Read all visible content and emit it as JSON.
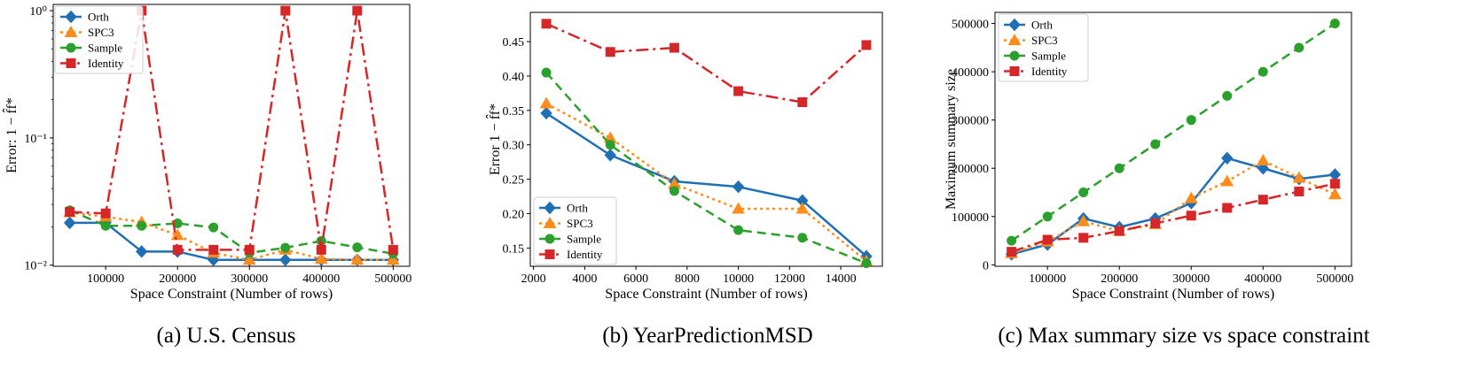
{
  "styles": {
    "Orth": {
      "color": "#1f6fb4",
      "dash": "",
      "marker": "diamond"
    },
    "SPC3": {
      "color": "#ff8c1a",
      "dash": "3 4",
      "marker": "triangle"
    },
    "Sample": {
      "color": "#2ca02c",
      "dash": "10 6",
      "marker": "circle"
    },
    "Identity": {
      "color": "#d62728",
      "dash": "14 5 3 5",
      "marker": "square"
    }
  },
  "chart_data": [
    {
      "type": "line",
      "caption": "(a) U.S. Census",
      "xlabel": "Space Constraint (Number of rows)",
      "ylabel": "Error: 1 − f̂f*",
      "yscale": "log",
      "xlim": [
        27000,
        523000
      ],
      "ylim": [
        0.0098,
        1.12
      ],
      "xticks": [
        100000,
        200000,
        300000,
        400000,
        500000
      ],
      "xtick_labels": [
        "100000",
        "200000",
        "300000",
        "400000",
        "500000"
      ],
      "yticks": [
        0.01,
        0.1,
        1
      ],
      "ytick_labels": [
        "10⁻²",
        "10⁻¹",
        "10⁰"
      ],
      "legend": "top-left",
      "x": [
        50000,
        100000,
        150000,
        200000,
        250000,
        300000,
        350000,
        400000,
        450000,
        500000
      ],
      "series": [
        {
          "name": "Orth",
          "values": [
            0.0215,
            0.0215,
            0.0128,
            0.0128,
            0.011,
            0.011,
            0.011,
            0.011,
            0.011,
            0.011
          ]
        },
        {
          "name": "SPC3",
          "values": [
            0.026,
            0.024,
            0.0218,
            0.0172,
            0.0125,
            0.011,
            0.0132,
            0.0112,
            0.011,
            0.011
          ]
        },
        {
          "name": "Sample",
          "values": [
            0.027,
            0.0204,
            0.0204,
            0.0213,
            0.0198,
            0.0125,
            0.0137,
            0.0155,
            0.0138,
            0.0123
          ]
        },
        {
          "name": "Identity",
          "values": [
            0.0262,
            0.0255,
            1.0,
            0.0132,
            0.0132,
            0.0132,
            1.0,
            0.0132,
            1.0,
            0.0132
          ]
        }
      ]
    },
    {
      "type": "line",
      "caption": "(b) YearPredictionMSD",
      "xlabel": "Space Constraint (Number of rows)",
      "ylabel": "Error 1 − f̂f*",
      "yscale": "linear",
      "xlim": [
        1875,
        15625
      ],
      "ylim": [
        0.1235,
        0.4925
      ],
      "xticks": [
        2000,
        4000,
        6000,
        8000,
        10000,
        12000,
        14000
      ],
      "xtick_labels": [
        "2000",
        "4000",
        "6000",
        "8000",
        "10000",
        "12000",
        "14000"
      ],
      "yticks": [
        0.15,
        0.2,
        0.25,
        0.3,
        0.35,
        0.4,
        0.45
      ],
      "ytick_labels": [
        "0.15",
        "0.20",
        "0.25",
        "0.30",
        "0.35",
        "0.40",
        "0.45"
      ],
      "legend": "bottom-left",
      "x": [
        2500,
        5000,
        7500,
        10000,
        12500,
        15000
      ],
      "series": [
        {
          "name": "Orth",
          "values": [
            0.346,
            0.285,
            0.247,
            0.239,
            0.219,
            0.138
          ]
        },
        {
          "name": "SPC3",
          "values": [
            0.36,
            0.31,
            0.243,
            0.207,
            0.207,
            0.131
          ]
        },
        {
          "name": "Sample",
          "values": [
            0.405,
            0.3,
            0.233,
            0.176,
            0.165,
            0.128
          ]
        },
        {
          "name": "Identity",
          "values": [
            0.476,
            0.435,
            0.441,
            0.378,
            0.362,
            0.445
          ]
        }
      ]
    },
    {
      "type": "line",
      "caption": "(c) Max summary size vs space constraint",
      "xlabel": "Space Constraint (Number of rows)",
      "ylabel": "Maximum summary size",
      "yscale": "linear",
      "xlim": [
        27000,
        523000
      ],
      "ylim": [
        -3000,
        523000
      ],
      "xticks": [
        100000,
        200000,
        300000,
        400000,
        500000
      ],
      "xtick_labels": [
        "100000",
        "200000",
        "300000",
        "400000",
        "500000"
      ],
      "yticks": [
        0,
        100000,
        200000,
        300000,
        400000,
        500000
      ],
      "ytick_labels": [
        "0",
        "100000",
        "200000",
        "300000",
        "400000",
        "500000"
      ],
      "legend": "top-left",
      "x": [
        50000,
        100000,
        150000,
        200000,
        250000,
        300000,
        350000,
        400000,
        450000,
        500000
      ],
      "series": [
        {
          "name": "Orth",
          "values": [
            22000,
            42000,
            96000,
            78000,
            96000,
            128000,
            221000,
            200000,
            178000,
            187000
          ]
        },
        {
          "name": "SPC3",
          "values": [
            24000,
            48000,
            90000,
            70000,
            84000,
            138000,
            173000,
            216000,
            180000,
            146000
          ]
        },
        {
          "name": "Sample",
          "values": [
            50000,
            100000,
            150000,
            200000,
            250000,
            300000,
            350000,
            400000,
            450000,
            500000
          ]
        },
        {
          "name": "Identity",
          "values": [
            27000,
            52000,
            56000,
            70000,
            86000,
            102000,
            118000,
            135000,
            152000,
            168000
          ]
        }
      ]
    }
  ]
}
